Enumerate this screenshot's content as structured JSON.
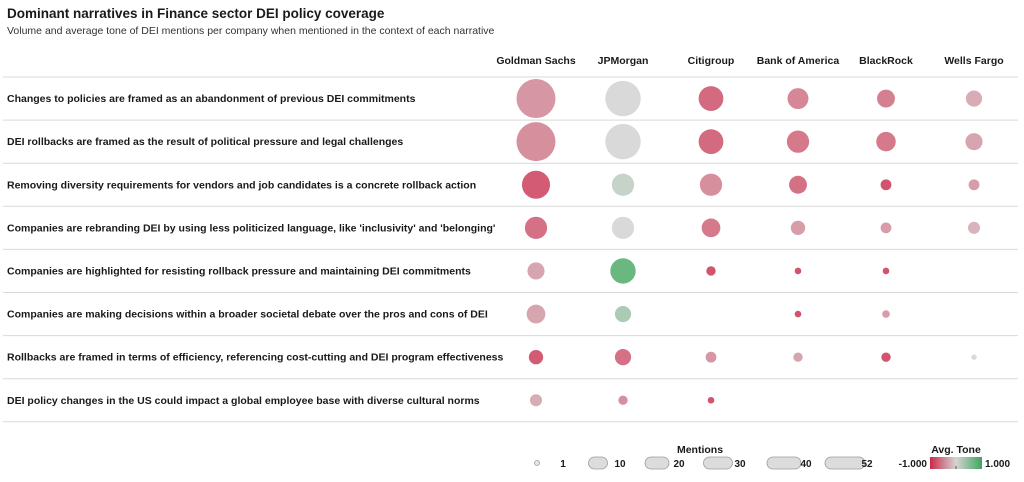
{
  "title": "Dominant narratives in Finance sector DEI policy coverage",
  "subtitle": "Volume and average tone of DEI mentions per company when mentioned in the context of each narrative",
  "chart_data": {
    "type": "bubble-matrix",
    "columns": [
      "Goldman Sachs",
      "JPMorgan",
      "Citigroup",
      "Bank of America",
      "BlackRock",
      "Wells Fargo"
    ],
    "rows": [
      "Changes to policies are framed as an abandonment of previous DEI commitments",
      "DEI rollbacks are framed as the result of political pressure and legal challenges",
      "Removing diversity requirements for vendors and job candidates is a concrete rollback action",
      "Companies are rebranding DEI by using less politicized language, like 'inclusivity' and 'belonging'",
      "Companies are highlighted for resisting rollback pressure and maintaining DEI commitments",
      "Companies are making decisions within a broader societal debate over the pros and cons of DEI",
      "Rollbacks are framed in terms of efficiency, referencing cost-cutting and DEI program effectiveness",
      "DEI policy changes in the US could impact a global employee base with diverse cultural norms"
    ],
    "mentions": [
      [
        52,
        43,
        21,
        15,
        11,
        9
      ],
      [
        52,
        43,
        21,
        17,
        13,
        10
      ],
      [
        27,
        17,
        17,
        11,
        4,
        4
      ],
      [
        17,
        17,
        12,
        7,
        4,
        5
      ],
      [
        10,
        22,
        3,
        1.5,
        1.5,
        null
      ],
      [
        12,
        9,
        null,
        1.5,
        2,
        null
      ],
      [
        7,
        9,
        4,
        3,
        3,
        1
      ],
      [
        5,
        3,
        1.5,
        null,
        null,
        null
      ]
    ],
    "tone": [
      [
        -0.45,
        0.0,
        -0.75,
        -0.55,
        -0.6,
        -0.3
      ],
      [
        -0.5,
        0.0,
        -0.75,
        -0.65,
        -0.65,
        -0.35
      ],
      [
        -0.85,
        0.15,
        -0.5,
        -0.7,
        -0.9,
        -0.4
      ],
      [
        -0.7,
        0.0,
        -0.65,
        -0.4,
        -0.4,
        -0.25
      ],
      [
        -0.35,
        0.85,
        -0.9,
        -0.9,
        -0.9,
        null
      ],
      [
        -0.35,
        0.35,
        null,
        -0.9,
        -0.4,
        null
      ],
      [
        -0.85,
        -0.7,
        -0.45,
        -0.35,
        -0.9,
        0.0
      ],
      [
        -0.3,
        -0.5,
        -0.9,
        null,
        null,
        null
      ]
    ],
    "size_legend": {
      "title": "Mentions",
      "values": [
        1,
        10,
        20,
        30,
        40,
        52
      ]
    },
    "color_legend": {
      "title": "Avg. Tone",
      "min_label": "-1.000",
      "max_label": "1.000",
      "min": -1,
      "max": 1,
      "negative_color": "#cc2a4b",
      "neutral_color": "#d4d4d4",
      "positive_color": "#3fa65c"
    }
  }
}
